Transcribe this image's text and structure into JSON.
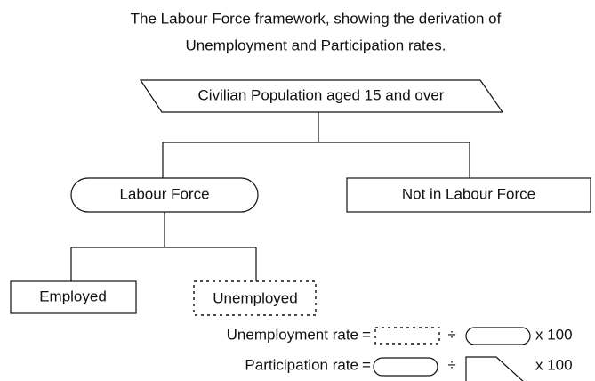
{
  "title": {
    "line1": "The Labour Force framework, showing the derivation of",
    "line2": "Unemployment and Participation rates."
  },
  "nodes": [
    {
      "label": "Civilian Population aged 15 and over"
    },
    {
      "label": "Labour Force"
    },
    {
      "label": "Not in Labour Force"
    },
    {
      "label": "Employed"
    },
    {
      "label": "Unemployed"
    }
  ],
  "formulas": [
    {
      "label": "Unemployment rate",
      "equals": "=",
      "divide": "÷",
      "multiply": "x 100"
    },
    {
      "label": "Participation rate",
      "equals": "=",
      "divide": "÷",
      "multiply": "x 100"
    }
  ]
}
